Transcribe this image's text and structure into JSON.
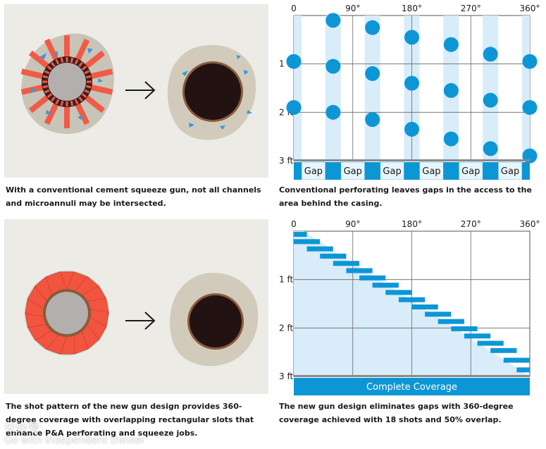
{
  "panels": {
    "top_left": {
      "caption": "With a conventional cement squeeze gun, not all channels and microannuli may be intersected."
    },
    "top_right": {
      "caption": "Conventional perforating leaves gaps in the access to the area behind the casing.",
      "x_ticks": [
        "0",
        "90°",
        "180°",
        "270°",
        "360°"
      ],
      "y_ticks": [
        "1 ft",
        "2 ft",
        "3 ft"
      ],
      "gap_label": "Gap",
      "gap_count": 6
    },
    "bottom_left": {
      "caption": "The shot pattern of the new gun design provides 360-degree coverage with overlapping rectangular slots that enhance P&A perforating and squeeze jobs."
    },
    "bottom_right": {
      "caption": "The new gun design eliminates gaps with 360-degree coverage achieved with 18 shots and 50% overlap.",
      "x_ticks": [
        "0",
        "90°",
        "180°",
        "270°",
        "360°"
      ],
      "y_ticks": [
        "1 ft",
        "2 ft",
        "3 ft"
      ],
      "coverage_label": "Complete Coverage"
    }
  },
  "watermark": {
    "line1": "公众号",
    "line2": "Go with independent thinker"
  },
  "chart_data": [
    {
      "type": "scatter",
      "xlabel": "",
      "ylabel": "",
      "x_ticks": [
        "0",
        "90°",
        "180°",
        "270°",
        "360°"
      ],
      "y_ticks": [
        "1 ft",
        "2 ft",
        "3 ft"
      ],
      "xlim": [
        0,
        360
      ],
      "ylim": [
        0,
        3
      ],
      "series": [
        {
          "x": [
            0,
            0,
            60,
            60,
            60,
            120,
            120,
            120,
            180,
            180,
            180,
            240,
            240,
            240,
            300,
            300,
            300,
            360,
            360,
            360
          ],
          "y": [
            0.95,
            1.9,
            0.1,
            1.05,
            2.0,
            0.25,
            1.2,
            2.15,
            0.45,
            1.4,
            2.35,
            0.6,
            1.55,
            2.55,
            0.8,
            1.75,
            2.75,
            0.95,
            1.9,
            2.9
          ]
        }
      ],
      "annotations": [
        "Gap",
        "Gap",
        "Gap",
        "Gap",
        "Gap",
        "Gap"
      ]
    },
    {
      "type": "bar",
      "xlabel": "",
      "ylabel": "",
      "x_ticks": [
        "0",
        "90°",
        "180°",
        "270°",
        "360°"
      ],
      "y_ticks": [
        "1 ft",
        "2 ft",
        "3 ft"
      ],
      "xlim": [
        0,
        360
      ],
      "ylim": [
        0,
        3
      ],
      "shots": 18,
      "overlap_percent": 50,
      "series": [
        {
          "start_deg": [
            0,
            0,
            20,
            40,
            60,
            80,
            100,
            120,
            140,
            160,
            180,
            200,
            220,
            240,
            260,
            280,
            300,
            320,
            340
          ],
          "end_deg": [
            20,
            40,
            60,
            80,
            100,
            120,
            140,
            160,
            180,
            200,
            220,
            240,
            260,
            280,
            300,
            320,
            340,
            360,
            360
          ],
          "depth_ft": [
            0,
            0.15,
            0.3,
            0.45,
            0.6,
            0.75,
            0.9,
            1.05,
            1.2,
            1.35,
            1.5,
            1.65,
            1.8,
            1.95,
            2.1,
            2.25,
            2.4,
            2.6,
            2.8
          ]
        }
      ],
      "annotations": [
        "Complete Coverage"
      ]
    }
  ]
}
